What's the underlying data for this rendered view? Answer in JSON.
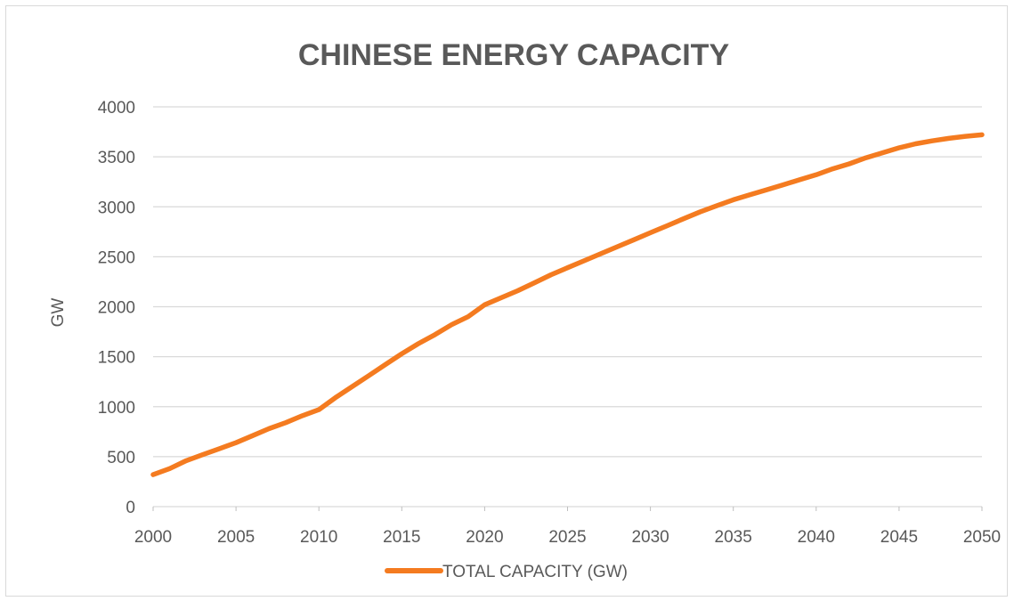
{
  "chart_data": {
    "type": "line",
    "title": "CHINESE ENERGY CAPACITY",
    "xlabel": "",
    "ylabel": "GW",
    "xlim": [
      2000,
      2050
    ],
    "ylim": [
      0,
      4000
    ],
    "x_ticks": [
      "2000",
      "2005",
      "2010",
      "2015",
      "2020",
      "2025",
      "2030",
      "2035",
      "2040",
      "2045",
      "2050"
    ],
    "y_ticks": [
      "0",
      "500",
      "1000",
      "1500",
      "2000",
      "2500",
      "3000",
      "3500",
      "4000"
    ],
    "grid": true,
    "legend_position": "bottom",
    "series": [
      {
        "name": "TOTAL CAPACITY (GW)",
        "color": "#f47b20",
        "x": [
          2000,
          2001,
          2002,
          2003,
          2004,
          2005,
          2006,
          2007,
          2008,
          2009,
          2010,
          2011,
          2012,
          2013,
          2014,
          2015,
          2016,
          2017,
          2018,
          2019,
          2020,
          2021,
          2022,
          2023,
          2024,
          2025,
          2026,
          2027,
          2028,
          2029,
          2030,
          2031,
          2032,
          2033,
          2034,
          2035,
          2036,
          2037,
          2038,
          2039,
          2040,
          2041,
          2042,
          2043,
          2044,
          2045,
          2046,
          2047,
          2048,
          2049,
          2050
        ],
        "y": [
          320,
          380,
          460,
          520,
          580,
          640,
          710,
          780,
          840,
          910,
          970,
          1090,
          1200,
          1310,
          1420,
          1530,
          1630,
          1720,
          1820,
          1900,
          2020,
          2090,
          2160,
          2240,
          2320,
          2390,
          2460,
          2530,
          2600,
          2670,
          2740,
          2810,
          2880,
          2950,
          3010,
          3070,
          3120,
          3170,
          3220,
          3270,
          3320,
          3380,
          3430,
          3490,
          3540,
          3590,
          3630,
          3660,
          3685,
          3705,
          3720
        ]
      }
    ]
  }
}
